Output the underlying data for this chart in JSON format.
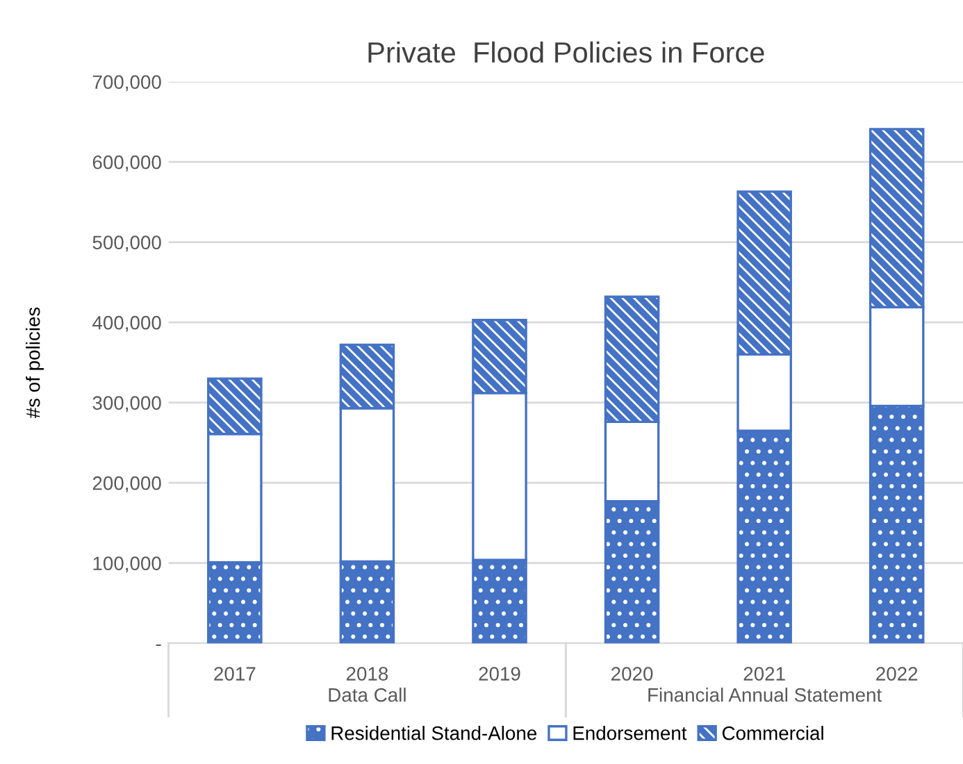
{
  "chart_data": {
    "type": "bar",
    "title": "Private  Flood Policies in Force",
    "ylabel": "#s of policies",
    "categories": [
      "2017",
      "2018",
      "2019",
      "2020",
      "2021",
      "2022"
    ],
    "stacked": true,
    "series": [
      {
        "name": "Residential Stand-Alone",
        "color": "#4472c4",
        "values": [
          101000,
          102000,
          104000,
          177000,
          265000,
          296000
        ]
      },
      {
        "name": "Endorsement",
        "color": "#ffffff",
        "values": [
          160000,
          191000,
          208000,
          99000,
          95000,
          123000
        ]
      },
      {
        "name": "Commercial",
        "color": "#4472c4",
        "values": [
          69000,
          79000,
          91000,
          156000,
          203000,
          222000
        ]
      }
    ],
    "ylim": [
      0,
      700000
    ],
    "yticks": [
      {
        "value": 0,
        "label": "-"
      },
      {
        "value": 100000,
        "label": "100,000"
      },
      {
        "value": 200000,
        "label": "200,000"
      },
      {
        "value": 300000,
        "label": "300,000"
      },
      {
        "value": 400000,
        "label": "400,000"
      },
      {
        "value": 500000,
        "label": "500,000"
      },
      {
        "value": 600000,
        "label": "600,000"
      },
      {
        "value": 700000,
        "label": "700,000"
      }
    ],
    "grid": "y",
    "legend": "bottom",
    "annotations": [
      "Data Call",
      "Financial Annual Statement"
    ]
  }
}
